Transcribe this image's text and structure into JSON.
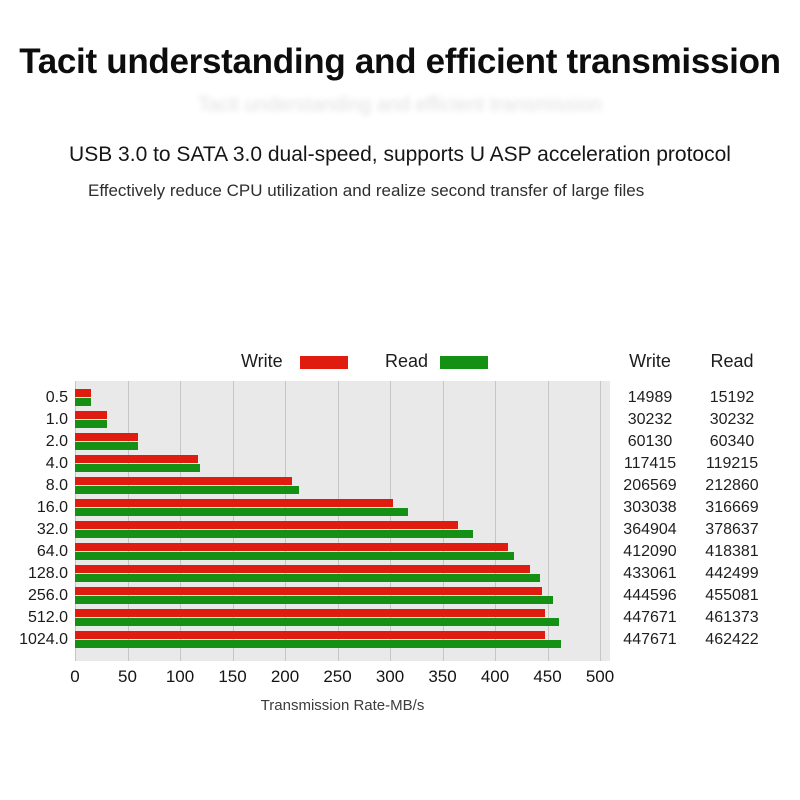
{
  "header": {
    "title": "Tacit understanding and efficient transmission"
  },
  "intro": {
    "subtitle": "USB 3.0 to SATA 3.0 dual-speed, supports U ASP acceleration protocol",
    "detail": "Effectively reduce CPU utilization and realize second transfer of large files"
  },
  "legend": {
    "write_label": "Write",
    "read_label": "Read"
  },
  "table": {
    "write_header": "Write",
    "read_header": "Read"
  },
  "chart_data": {
    "type": "bar",
    "orientation": "horizontal",
    "categories": [
      "0.5",
      "1.0",
      "2.0",
      "4.0",
      "8.0",
      "16.0",
      "32.0",
      "64.0",
      "128.0",
      "256.0",
      "512.0",
      "1024.0"
    ],
    "series": [
      {
        "name": "Write",
        "color": "#e01b10",
        "values": [
          14989,
          30232,
          60130,
          117415,
          206569,
          303038,
          364904,
          412090,
          433061,
          444596,
          447671,
          447671
        ]
      },
      {
        "name": "Read",
        "color": "#149014",
        "values": [
          15192,
          30232,
          60340,
          119215,
          212860,
          316669,
          378637,
          418381,
          442499,
          455081,
          461373,
          462422
        ]
      }
    ],
    "value_scale": 0.001,
    "xlabel": "Transmission Rate-MB/s",
    "xlim": [
      0,
      500
    ],
    "xticks": [
      0,
      50,
      100,
      150,
      200,
      250,
      300,
      350,
      400,
      450,
      500
    ],
    "grid": true,
    "plot_bg": "#e9e9e9",
    "gridline_color": "#c6c6c6",
    "legend_position": "top"
  }
}
